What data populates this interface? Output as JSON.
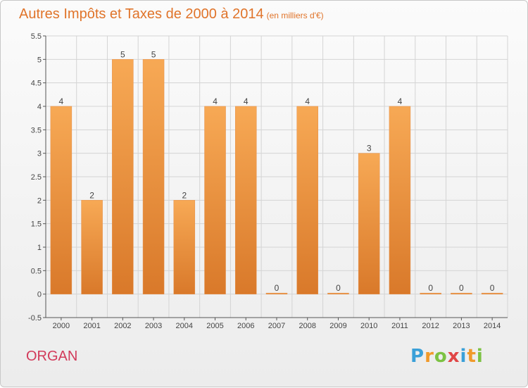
{
  "title": {
    "main": "Autres Impôts et Taxes de 2000 à 2014",
    "unit": "(en milliers d'€)"
  },
  "commune": "ORGAN",
  "logo": {
    "letters": [
      "P",
      "r",
      "o",
      "x",
      "i",
      "t",
      "i"
    ]
  },
  "colors": {
    "title": "#e0742a",
    "commune": "#d23a5a",
    "bar_top": "#f7a955",
    "bar_bottom": "#d9792a"
  },
  "chart_data": {
    "type": "bar",
    "title": "Autres Impôts et Taxes de 2000 à 2014",
    "subtitle": "(en milliers d'€)",
    "xlabel": "",
    "ylabel": "",
    "categories": [
      "2000",
      "2001",
      "2002",
      "2003",
      "2004",
      "2005",
      "2006",
      "2007",
      "2008",
      "2009",
      "2010",
      "2011",
      "2012",
      "2013",
      "2014"
    ],
    "values": [
      4,
      2,
      5,
      5,
      2,
      4,
      4,
      0,
      4,
      0,
      3,
      4,
      0,
      0,
      0
    ],
    "data_labels": [
      "4",
      "2",
      "5",
      "5",
      "2",
      "4",
      "4",
      "0",
      "4",
      "0",
      "3",
      "4",
      "0",
      "0",
      "0"
    ],
    "ylim": [
      -0.5,
      5.5
    ],
    "yticks": [
      -0.5,
      0,
      0.5,
      1,
      1.5,
      2,
      2.5,
      3,
      3.5,
      4,
      4.5,
      5,
      5.5
    ],
    "ytick_labels": [
      "-0.5",
      "0",
      "0.5",
      "1",
      "1.5",
      "2",
      "2.5",
      "3",
      "3.5",
      "4",
      "4.5",
      "5",
      "5.5"
    ],
    "grid": true,
    "legend": "none"
  }
}
